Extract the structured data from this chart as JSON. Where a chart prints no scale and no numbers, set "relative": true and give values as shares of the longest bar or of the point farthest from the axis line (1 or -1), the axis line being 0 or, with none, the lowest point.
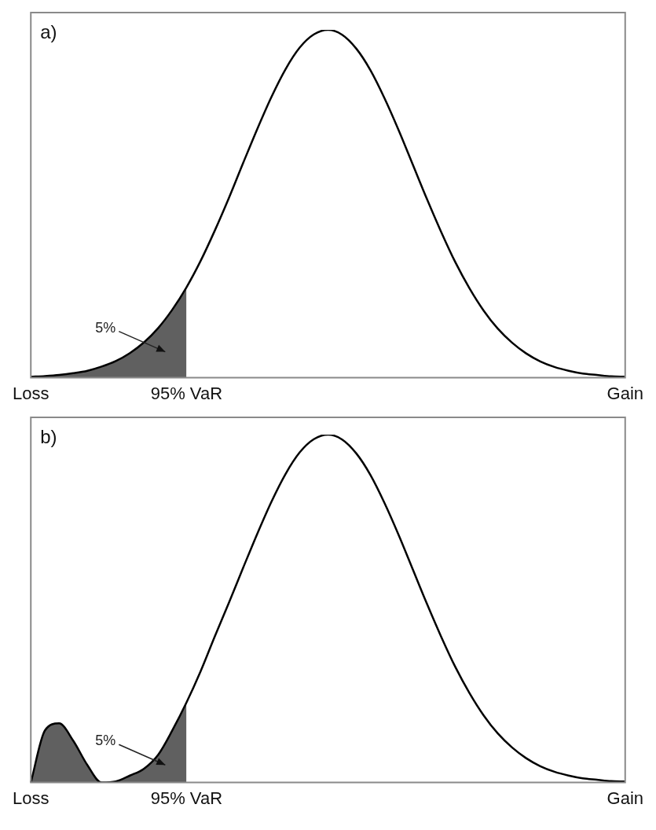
{
  "chart_data": [
    {
      "type": "line",
      "title": "a)",
      "relative": true,
      "tick_labels": "x",
      "annotations": [
        "5%"
      ],
      "categories": [
        "Loss",
        null,
        null,
        null,
        null,
        null,
        null,
        null,
        null,
        null,
        null,
        "95% VaR",
        null,
        null,
        null,
        null,
        null,
        null,
        null,
        null,
        null,
        null,
        null,
        null,
        null,
        null,
        null,
        null,
        null,
        null,
        null,
        null,
        null,
        null,
        null,
        null,
        null,
        null,
        null,
        null,
        null,
        null,
        "Gain"
      ],
      "series": [
        {
          "type": "line",
          "color": "#000000",
          "values": [
            0.003,
            0.005,
            0.008,
            0.013,
            0.02,
            0.032,
            0.048,
            0.071,
            0.102,
            0.143,
            0.196,
            0.26,
            0.336,
            0.423,
            0.517,
            0.617,
            0.715,
            0.807,
            0.887,
            0.949,
            0.987,
            1.0,
            0.986,
            0.946,
            0.884,
            0.803,
            0.711,
            0.612,
            0.513,
            0.419,
            0.332,
            0.257,
            0.193,
            0.141,
            0.101,
            0.07,
            0.047,
            0.031,
            0.02,
            0.012,
            0.008,
            0.004,
            0.003
          ]
        },
        {
          "type": "area",
          "color": "#606060",
          "values": [
            0.003,
            0.005,
            0.008,
            0.013,
            0.02,
            0.032,
            0.048,
            0.071,
            0.102,
            0.143,
            0.196,
            0.26,
            null,
            null,
            null,
            null,
            null,
            null,
            null,
            null,
            null,
            null,
            null,
            null,
            null,
            null,
            null,
            null,
            null,
            null,
            null,
            null,
            null,
            null,
            null,
            null,
            null,
            null,
            null,
            null,
            null,
            null,
            null
          ]
        }
      ]
    },
    {
      "type": "line",
      "title": "b)",
      "relative": true,
      "tick_labels": "x",
      "annotations": [
        "5%"
      ],
      "categories": [
        "Loss",
        null,
        null,
        null,
        null,
        null,
        null,
        null,
        null,
        null,
        null,
        "95% VaR",
        null,
        null,
        null,
        null,
        null,
        null,
        null,
        null,
        null,
        null,
        null,
        null,
        null,
        null,
        null,
        null,
        null,
        null,
        null,
        null,
        null,
        null,
        null,
        null,
        null,
        null,
        null,
        null,
        null,
        null,
        "Gain"
      ],
      "series": [
        {
          "type": "line",
          "color": "#000000",
          "values": [
            0,
            0.15,
            0.17,
            0.12,
            0.05,
            0,
            0.003,
            0.02,
            0.04,
            0.08,
            0.15,
            0.23,
            0.32,
            0.42,
            0.517,
            0.617,
            0.715,
            0.807,
            0.887,
            0.949,
            0.987,
            1.0,
            0.986,
            0.946,
            0.884,
            0.803,
            0.711,
            0.612,
            0.513,
            0.419,
            0.332,
            0.257,
            0.193,
            0.141,
            0.101,
            0.07,
            0.047,
            0.031,
            0.02,
            0.012,
            0.008,
            0.004,
            0.003
          ]
        },
        {
          "type": "area",
          "color": "#606060",
          "values": [
            0,
            0.15,
            0.17,
            0.12,
            0.05,
            0,
            0.003,
            0.02,
            0.04,
            0.08,
            0.15,
            0.23,
            null,
            null,
            null,
            null,
            null,
            null,
            null,
            null,
            null,
            null,
            null,
            null,
            null,
            null,
            null,
            null,
            null,
            null,
            null,
            null,
            null,
            null,
            null,
            null,
            null,
            null,
            null,
            null,
            null,
            null,
            null
          ]
        }
      ]
    }
  ]
}
